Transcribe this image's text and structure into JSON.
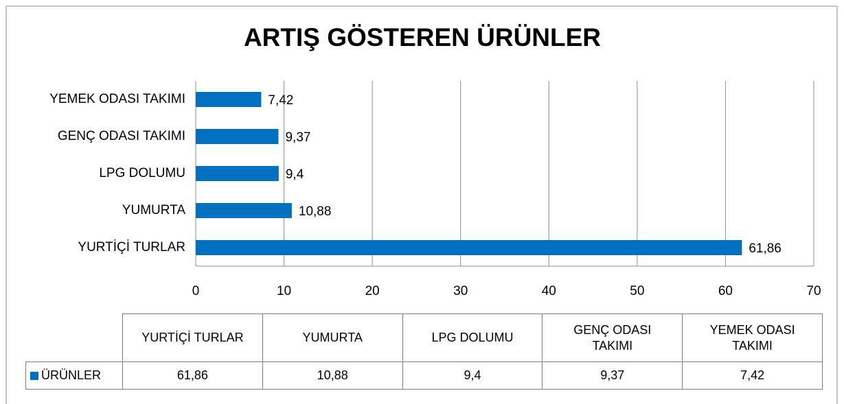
{
  "chart_data": {
    "type": "bar",
    "orientation": "horizontal",
    "title": "ARTIŞ GÖSTEREN ÜRÜNLER",
    "categories": [
      "YURTİÇİ TURLAR",
      "YUMURTA",
      "LPG DOLUMU",
      "GENÇ ODASI TAKIMI",
      "YEMEK ODASI TAKIMI"
    ],
    "series": [
      {
        "name": "ÜRÜNLER",
        "color": "#0070c0",
        "values": [
          61.86,
          10.88,
          9.4,
          9.37,
          7.42
        ],
        "value_labels": [
          "61,86",
          "10,88",
          "9,4",
          "9,37",
          "7,42"
        ]
      }
    ],
    "xlim": [
      0,
      70
    ],
    "xticks": [
      0,
      10,
      20,
      30,
      40,
      50,
      60,
      70
    ],
    "grid": true,
    "data_table": true
  }
}
